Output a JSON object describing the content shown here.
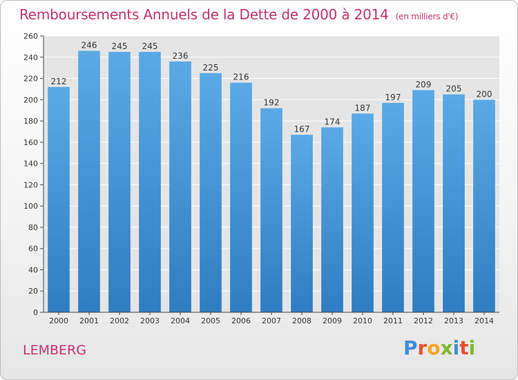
{
  "chart_data": {
    "type": "bar",
    "title": "Remboursements Annuels de la Dette de 2000 à 2014",
    "subtitle": "(en milliers d'€)",
    "categories": [
      "2000",
      "2001",
      "2002",
      "2003",
      "2004",
      "2005",
      "2006",
      "2007",
      "2008",
      "2009",
      "2010",
      "2011",
      "2012",
      "2013",
      "2014"
    ],
    "values": [
      212,
      246,
      245,
      245,
      236,
      225,
      216,
      192,
      167,
      174,
      187,
      197,
      209,
      205,
      200
    ],
    "ylim": [
      0,
      260
    ],
    "yticks": [
      0,
      20,
      40,
      60,
      80,
      100,
      120,
      140,
      160,
      180,
      200,
      220,
      240,
      260
    ],
    "xlabel": "",
    "ylabel": "",
    "grid": true,
    "bar_color_top": "#5aaae6",
    "bar_color_bottom": "#2e7dc1"
  },
  "footer": {
    "location": "LEMBERG",
    "logo_letters": [
      "P",
      "r",
      "o",
      "x",
      "i",
      "t",
      "i"
    ]
  }
}
